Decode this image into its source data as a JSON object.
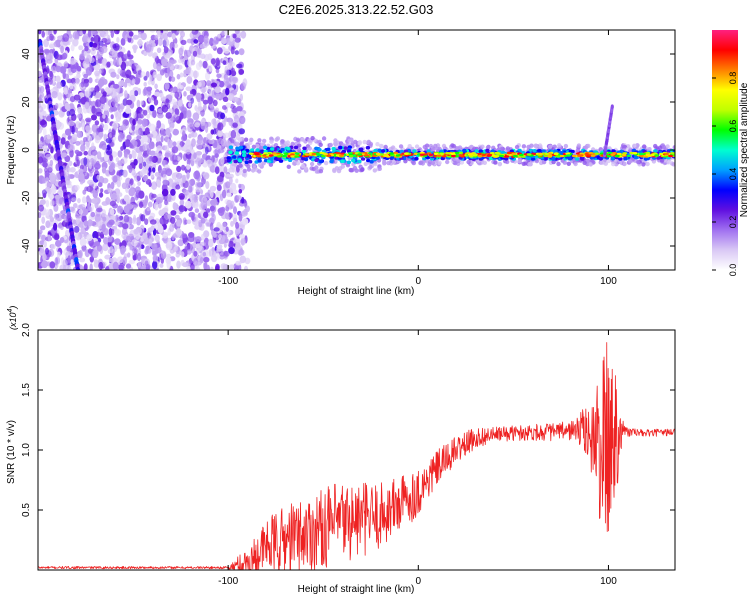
{
  "figure_title": "C2E6.2025.313.22.52.G03",
  "chart_data": [
    {
      "type": "heatmap",
      "title": "C2E6.2025.313.22.52.G03",
      "xlabel": "Height of straight line (km)",
      "ylabel": "Frequency (Hz)",
      "xlim": [
        -200,
        135
      ],
      "ylim": [
        -50,
        50
      ],
      "x_ticks": [
        -100,
        0,
        100
      ],
      "y_ticks": [
        -40,
        -20,
        0,
        20,
        40
      ],
      "colorbar": {
        "label": "Normalized spectral amplitude",
        "range": [
          0,
          1
        ],
        "ticks": [
          0.0,
          0.2,
          0.4,
          0.6,
          0.8
        ],
        "colormap": [
          "#ffffff",
          "#d9c8f5",
          "#a070f0",
          "#6010e0",
          "#0000ff",
          "#00a0ff",
          "#00ffd0",
          "#00ff00",
          "#c0ff00",
          "#ffff00",
          "#ff8000",
          "#ff0000",
          "#ff2080"
        ]
      },
      "features": {
        "noise_region_x": [
          -200,
          -95
        ],
        "streak_line": {
          "x_at_top": -199,
          "y_top": 45,
          "x_at_bottom": -179,
          "y_bottom": -50
        },
        "main_band_x": [
          -100,
          135
        ],
        "main_band_center_hz": -2,
        "spike_x": 100,
        "spike_peak_hz": 18
      }
    },
    {
      "type": "line",
      "xlabel": "Height of straight line (km)",
      "ylabel": "SNR (10 * v/v)",
      "y_scale_label": "(x10",
      "y_scale_exponent": "4",
      "xlim": [
        -200,
        135
      ],
      "ylim": [
        0,
        2.0
      ],
      "x_ticks": [
        -100,
        0,
        100
      ],
      "y_ticks": [
        "0.5",
        "1.0",
        "1.5",
        "2.0"
      ],
      "series": [
        {
          "color": "#ee2222",
          "anchor_x": [
            -200,
            -100,
            -90,
            -85,
            -80,
            -70,
            -60,
            -50,
            -40,
            -30,
            -20,
            -10,
            0,
            10,
            20,
            30,
            40,
            50,
            60,
            70,
            80,
            85,
            90,
            95,
            100,
            105,
            110,
            120,
            135
          ],
          "anchor_y": [
            0.02,
            0.02,
            0.05,
            0.12,
            0.2,
            0.25,
            0.3,
            0.35,
            0.4,
            0.42,
            0.45,
            0.55,
            0.65,
            0.85,
            1.0,
            1.1,
            1.13,
            1.14,
            1.15,
            1.15,
            1.16,
            1.17,
            1.15,
            1.0,
            1.05,
            1.2,
            1.15,
            1.14,
            1.15
          ],
          "noise_amp_x": [
            -200,
            -100,
            -90,
            -70,
            -40,
            -10,
            10,
            40,
            80,
            88,
            95,
            100,
            104,
            108,
            115,
            135
          ],
          "noise_amp_y": [
            0.01,
            0.01,
            0.15,
            0.3,
            0.35,
            0.25,
            0.15,
            0.06,
            0.08,
            0.2,
            0.6,
            0.95,
            0.6,
            0.05,
            0.03,
            0.03
          ]
        }
      ]
    }
  ]
}
